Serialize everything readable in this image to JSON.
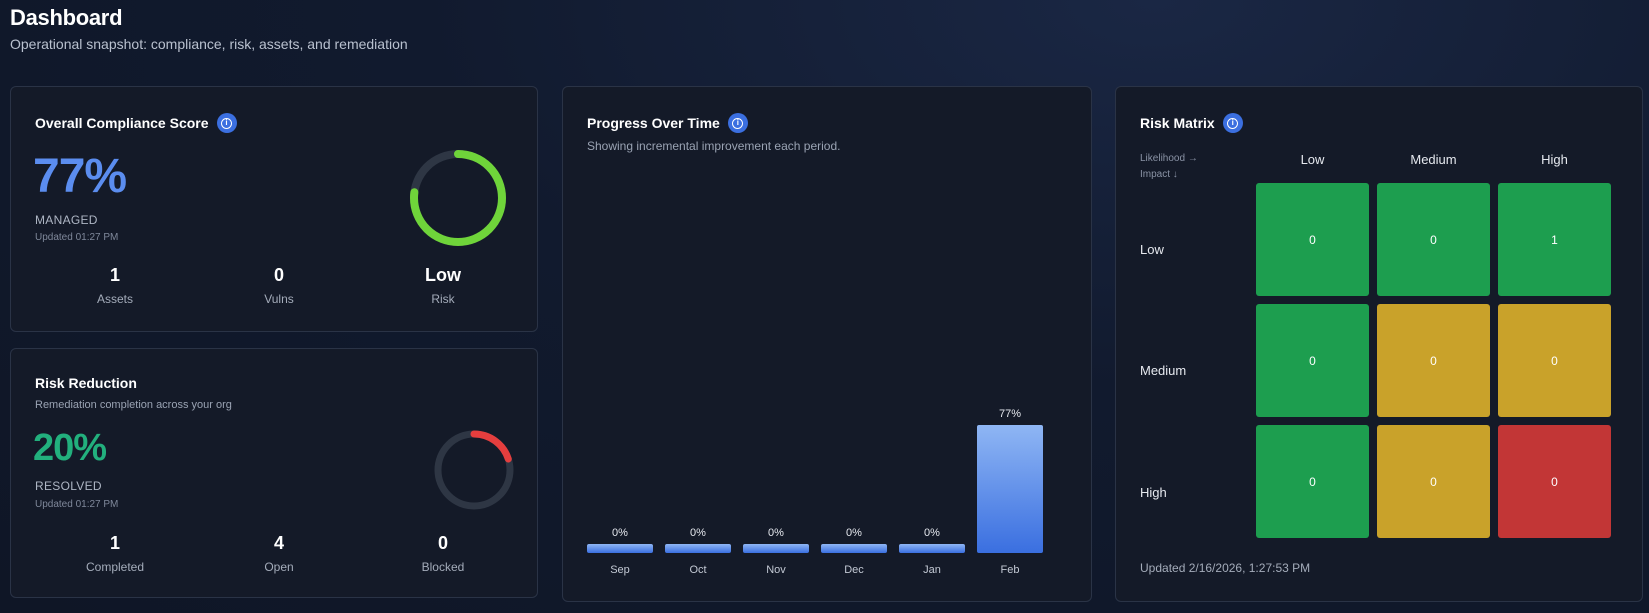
{
  "header": {
    "title": "Dashboard",
    "subtitle": "Operational snapshot: compliance, risk, assets, and remediation"
  },
  "compliance": {
    "title": "Overall Compliance Score",
    "score": "77%",
    "score_fraction": 0.77,
    "status": "MANAGED",
    "updated": "Updated 01:27 PM",
    "ring_color": "#6fd43a",
    "stats": [
      {
        "value": "1",
        "label": "Assets"
      },
      {
        "value": "0",
        "label": "Vulns"
      },
      {
        "value": "Low",
        "label": "Risk"
      }
    ]
  },
  "risk_reduction": {
    "title": "Risk Reduction",
    "description": "Remediation completion across your org",
    "score": "20%",
    "score_fraction": 0.2,
    "status": "RESOLVED",
    "updated": "Updated 01:27 PM",
    "ring_color": "#e53e3e",
    "stats": [
      {
        "value": "1",
        "label": "Completed"
      },
      {
        "value": "4",
        "label": "Open"
      },
      {
        "value": "0",
        "label": "Blocked"
      }
    ]
  },
  "progress": {
    "title": "Progress Over Time",
    "description": "Showing incremental improvement each period."
  },
  "chart_data": {
    "type": "bar",
    "categories": [
      "Sep",
      "Oct",
      "Nov",
      "Dec",
      "Jan",
      "Feb"
    ],
    "values": [
      0,
      0,
      0,
      0,
      0,
      77
    ],
    "value_labels": [
      "0%",
      "0%",
      "0%",
      "0%",
      "0%",
      "77%"
    ],
    "title": "",
    "xlabel": "",
    "ylabel": "",
    "ylim": [
      0,
      100
    ],
    "bar_color": "#5b8def",
    "grid": false
  },
  "risk_matrix": {
    "title": "Risk Matrix",
    "likelihood_hint": "Likelihood →",
    "impact_hint": "Impact ↓",
    "columns": [
      "Low",
      "Medium",
      "High"
    ],
    "rows": [
      "Low",
      "Medium",
      "High"
    ],
    "cells": [
      [
        {
          "value": "0",
          "level": "green"
        },
        {
          "value": "0",
          "level": "green"
        },
        {
          "value": "1",
          "level": "green"
        }
      ],
      [
        {
          "value": "0",
          "level": "green"
        },
        {
          "value": "0",
          "level": "yellow"
        },
        {
          "value": "0",
          "level": "yellow"
        }
      ],
      [
        {
          "value": "0",
          "level": "green"
        },
        {
          "value": "0",
          "level": "yellow"
        },
        {
          "value": "0",
          "level": "red"
        }
      ]
    ],
    "colors": {
      "green": "#1d9e4f",
      "yellow": "#c9a22a",
      "red": "#c23636"
    },
    "updated": "Updated 2/16/2026, 1:27:53 PM"
  }
}
